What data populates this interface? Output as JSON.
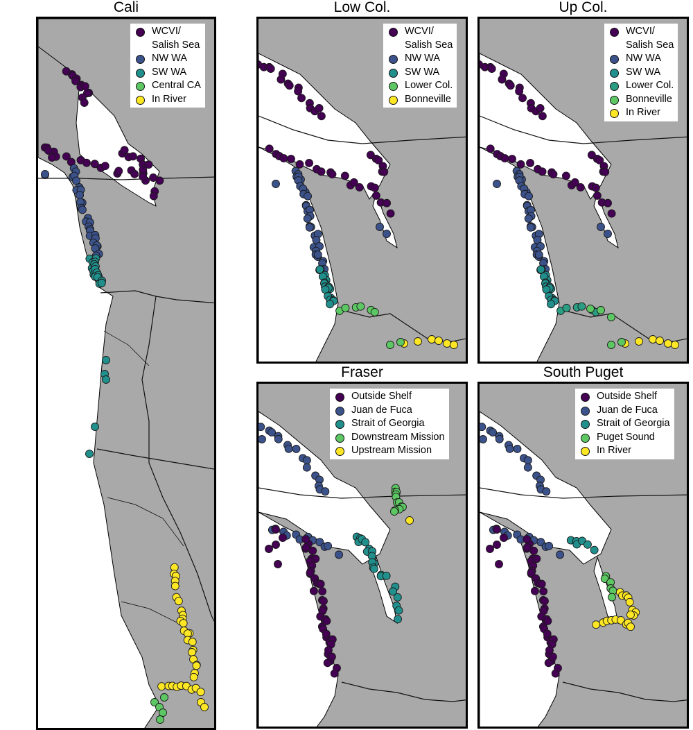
{
  "colors": {
    "land": "#a9a9a9",
    "water": "#ffffff",
    "border": "#000000",
    "purple": "#440154",
    "blue": "#3b528b",
    "teal": "#21908d",
    "green": "#5dc863",
    "yellow": "#fde725"
  },
  "panels": [
    {
      "title": "Cali",
      "legend": [
        {
          "label": "WCVI/\nSalish Sea",
          "color": "purple"
        },
        {
          "label": "NW WA",
          "color": "blue"
        },
        {
          "label": "SW WA",
          "color": "teal"
        },
        {
          "label": "Central CA",
          "color": "green"
        },
        {
          "label": "In River",
          "color": "yellow"
        }
      ]
    },
    {
      "title": "Low Col.",
      "legend": [
        {
          "label": "WCVI/\nSalish Sea",
          "color": "purple"
        },
        {
          "label": "NW WA",
          "color": "blue"
        },
        {
          "label": "SW WA",
          "color": "teal"
        },
        {
          "label": "Lower Col.",
          "color": "green"
        },
        {
          "label": "Bonneville",
          "color": "yellow"
        }
      ]
    },
    {
      "title": "Up Col.",
      "legend": [
        {
          "label": "WCVI/\nSalish Sea",
          "color": "purple"
        },
        {
          "label": "NW WA",
          "color": "blue"
        },
        {
          "label": "SW WA",
          "color": "teal"
        },
        {
          "label": "Lower Col.",
          "color": "teal2"
        },
        {
          "label": "Bonneville",
          "color": "green"
        },
        {
          "label": "In River",
          "color": "yellow"
        }
      ]
    },
    {
      "title": "Fraser",
      "legend": [
        {
          "label": "Outside Shelf",
          "color": "purple"
        },
        {
          "label": "Juan de Fuca",
          "color": "blue"
        },
        {
          "label": "Strait of Georgia",
          "color": "teal"
        },
        {
          "label": "Downstream Mission",
          "color": "green"
        },
        {
          "label": "Upstream Mission",
          "color": "yellow"
        }
      ]
    },
    {
      "title": "South Puget",
      "legend": [
        {
          "label": "Outside Shelf",
          "color": "purple"
        },
        {
          "label": "Juan de Fuca",
          "color": "blue"
        },
        {
          "label": "Strait of Georgia",
          "color": "teal"
        },
        {
          "label": "Puget Sound",
          "color": "green"
        },
        {
          "label": "In River",
          "color": "yellow"
        }
      ]
    }
  ]
}
